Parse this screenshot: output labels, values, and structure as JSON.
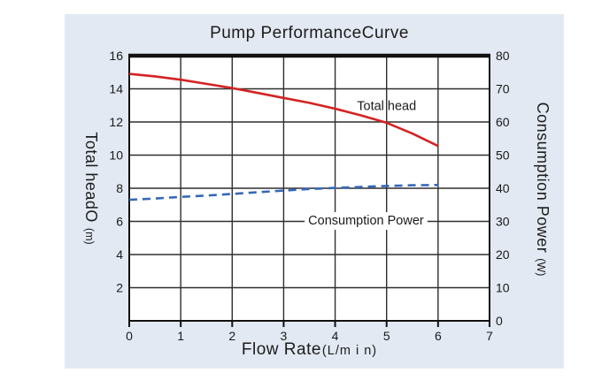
{
  "card": {
    "background": "#e2e9f3"
  },
  "chart_data": {
    "type": "line",
    "title": "Pump PerformanceCurve",
    "xlabel": "Flow Rate",
    "xlabel_unit": "(L/m i n)",
    "ylabel_left": "Total headO",
    "ylabel_left_unit": "(m)",
    "ylabel_right": "Consumption Power",
    "ylabel_right_unit": "(W)",
    "x_range": [
      0,
      7
    ],
    "x_ticks": [
      0,
      1,
      2,
      3,
      4,
      5,
      6,
      7
    ],
    "y_left_range": [
      0,
      16
    ],
    "y_left_ticks": [
      2,
      4,
      6,
      8,
      10,
      12,
      14,
      16
    ],
    "y_right_range": [
      0,
      80
    ],
    "y_right_ticks": [
      0,
      10,
      20,
      30,
      40,
      50,
      60,
      70,
      80
    ],
    "grid": true,
    "grid_color": "#2e2e2e",
    "axis_color": "#111111",
    "plot_background": "#ffffff",
    "series": [
      {
        "name": "Total head",
        "axis": "left",
        "style": "solid",
        "color": "#d42323",
        "x": [
          0,
          0.5,
          1,
          1.5,
          2,
          2.5,
          3,
          3.5,
          4,
          4.5,
          5,
          5.5,
          6
        ],
        "y": [
          14.9,
          14.75,
          14.55,
          14.3,
          14.05,
          13.75,
          13.45,
          13.15,
          12.8,
          12.4,
          11.95,
          11.3,
          10.55
        ],
        "label": {
          "text": "Total head",
          "x": 5.0,
          "y": 13.0,
          "bg": "transparent"
        }
      },
      {
        "name": "Consumption Power",
        "axis": "right",
        "style": "dashed",
        "color": "#3567b8",
        "x": [
          0,
          0.5,
          1,
          1.5,
          2,
          2.5,
          3,
          3.5,
          4,
          4.5,
          5,
          5.5,
          6
        ],
        "y": [
          36.5,
          36.9,
          37.4,
          37.8,
          38.3,
          38.8,
          39.3,
          39.8,
          40.1,
          40.4,
          40.7,
          40.9,
          41.0
        ],
        "label": {
          "text": "Consumption Power",
          "x": 4.6,
          "y": 30.4,
          "bg": "#ffffff"
        }
      }
    ]
  }
}
